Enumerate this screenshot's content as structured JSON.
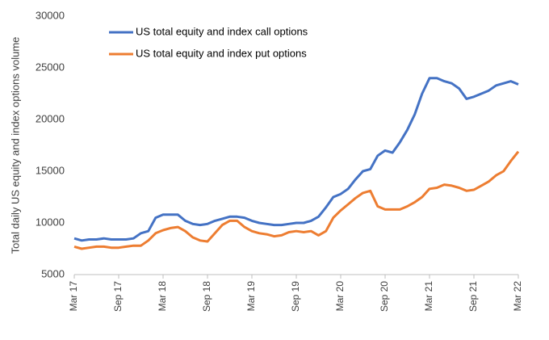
{
  "chart_data": {
    "type": "line",
    "y_label": "Total daily US equity and index options volume",
    "categories": [
      "Mar 17",
      null,
      null,
      null,
      null,
      null,
      "Sep 17",
      null,
      null,
      null,
      null,
      null,
      "Mar 18",
      null,
      null,
      null,
      null,
      null,
      "Sep 18",
      null,
      null,
      null,
      null,
      null,
      "Mar 19",
      null,
      null,
      null,
      null,
      null,
      "Sep 19",
      null,
      null,
      null,
      null,
      null,
      "Mar 20",
      null,
      null,
      null,
      null,
      null,
      "Sep 20",
      null,
      null,
      null,
      null,
      null,
      "Mar 21",
      null,
      null,
      null,
      null,
      null,
      "Sep 21",
      null,
      null,
      null,
      null,
      null,
      "Mar 22"
    ],
    "series": [
      {
        "name": "US total equity and index call options",
        "color": "#4472c4",
        "values": [
          8500,
          8300,
          8400,
          8400,
          8500,
          8400,
          8400,
          8400,
          8500,
          9000,
          9200,
          10500,
          10800,
          10800,
          10800,
          10200,
          9900,
          9800,
          9900,
          10200,
          10400,
          10600,
          10600,
          10500,
          10200,
          10000,
          9900,
          9800,
          9800,
          9900,
          10000,
          10000,
          10200,
          10600,
          11500,
          12500,
          12800,
          13300,
          14200,
          15000,
          15200,
          16500,
          17000,
          16800,
          17800,
          19000,
          20500,
          22500,
          24000,
          24000,
          23700,
          23500,
          23000,
          22000,
          22200,
          22500,
          22800,
          23300,
          23500,
          23700,
          23400
        ]
      },
      {
        "name": "US total equity and index put options",
        "color": "#ed7d31",
        "values": [
          7700,
          7500,
          7600,
          7700,
          7700,
          7600,
          7600,
          7700,
          7800,
          7800,
          8300,
          9000,
          9300,
          9500,
          9600,
          9200,
          8600,
          8300,
          8200,
          9000,
          9800,
          10200,
          10200,
          9600,
          9200,
          9000,
          8900,
          8700,
          8800,
          9100,
          9200,
          9100,
          9200,
          8800,
          9200,
          10500,
          11200,
          11800,
          12400,
          12900,
          13100,
          11600,
          11300,
          11300,
          11300,
          11600,
          12000,
          12500,
          13300,
          13400,
          13700,
          13600,
          13400,
          13100,
          13200,
          13600,
          14000,
          14600,
          15000,
          16000,
          16900
        ]
      }
    ],
    "ylim": [
      5000,
      30000
    ],
    "yticks": [
      5000,
      10000,
      15000,
      20000,
      25000,
      30000
    ],
    "grid": false
  }
}
